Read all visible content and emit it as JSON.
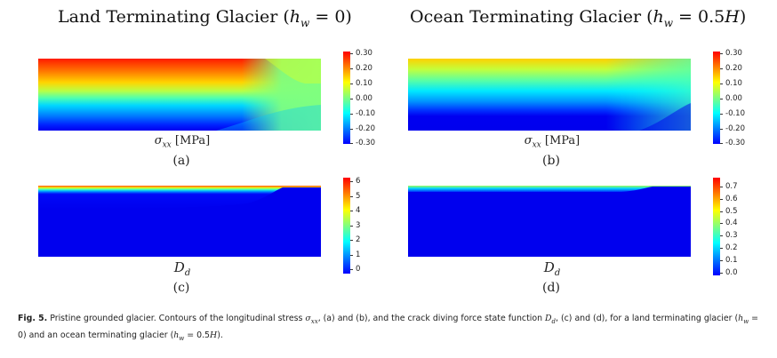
{
  "titles": {
    "left_text": "Land Terminating Glacier (",
    "left_math": "h",
    "left_sub": "w",
    "left_rest": " = 0)",
    "right_text": "Ocean Terminating Glacier (",
    "right_math": "h",
    "right_sub": "w",
    "right_rest": " = 0.5",
    "right_H": "H",
    "right_close": ")"
  },
  "panels": [
    {
      "id": "a",
      "sub_label": "(a)",
      "field_symbol": "σ",
      "field_sub": "xx",
      "field_unit": "[MPa]",
      "colorbar_ticks": [
        "0.30",
        "0.20",
        "0.10",
        "0.00",
        "-0.10",
        "-0.20",
        "-0.30"
      ]
    },
    {
      "id": "b",
      "sub_label": "(b)",
      "field_symbol": "σ",
      "field_sub": "xx",
      "field_unit": "[MPa]",
      "colorbar_ticks": [
        "0.30",
        "0.20",
        "0.10",
        "0.00",
        "-0.10",
        "-0.20",
        "-0.30"
      ]
    },
    {
      "id": "c",
      "sub_label": "(c)",
      "field_symbol": "D",
      "field_sub": "d",
      "field_unit": "",
      "colorbar_ticks": [
        "6",
        "5",
        "4",
        "3",
        "2",
        "1",
        "0"
      ]
    },
    {
      "id": "d",
      "sub_label": "(d)",
      "field_symbol": "D",
      "field_sub": "d",
      "field_unit": "",
      "colorbar_ticks": [
        "0.7",
        "0.6",
        "0.5",
        "0.4",
        "0.3",
        "0.2",
        "0.1",
        "0.0"
      ]
    }
  ],
  "caption": {
    "fig": "Fig. 5.",
    "t1": " Pristine grounded glacier. Contours of the longitudinal stress ",
    "m1": "σ",
    "m1sub": "xx",
    "t2": ", (a) and (b), and the crack diving force state function ",
    "m2": "D",
    "m2sub": "d",
    "t3": ", (c) and (d), for a land terminating glacier (",
    "m3": "h",
    "m3sub": "w",
    "t4": " = 0) and an ocean terminating glacier (",
    "m4": "h",
    "m4sub": "w",
    "t5": " = 0.5",
    "m5": "H",
    "t6": ")."
  },
  "colors": {
    "jet": [
      "#00007f",
      "#0000ff",
      "#007fff",
      "#00ffff",
      "#7fff7f",
      "#ffff00",
      "#ff7f00",
      "#ff0000",
      "#7f0000"
    ]
  }
}
